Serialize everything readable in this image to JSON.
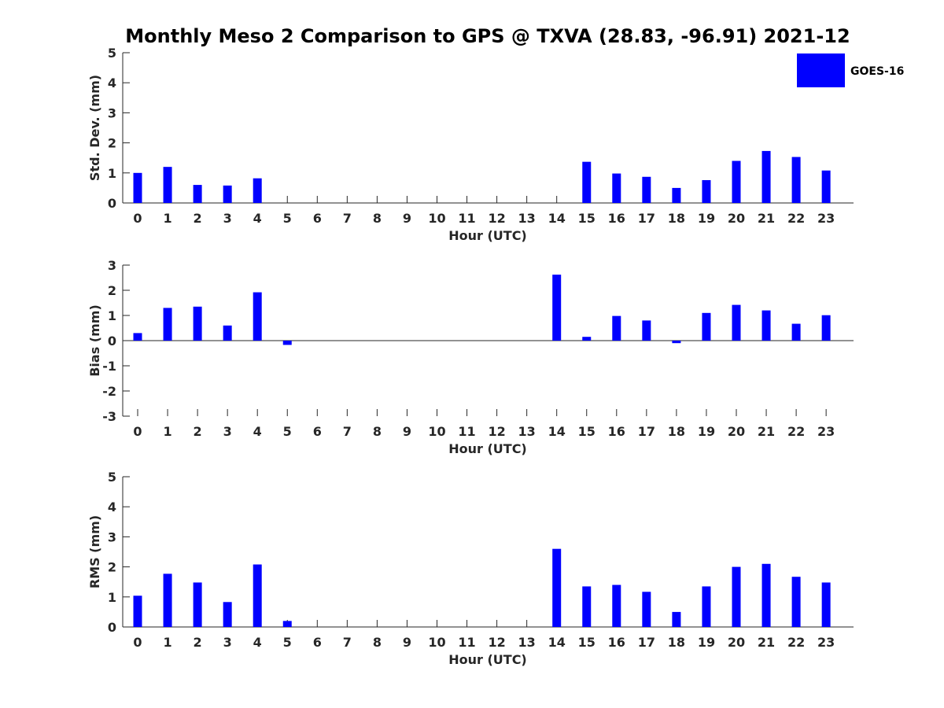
{
  "title": "Monthly Meso 2 Comparison to GPS @ TXVA (28.83, -96.91) 2021-12",
  "legend": {
    "label": "GOES-16",
    "color": "#0000ff",
    "placement": "top-right"
  },
  "chart_data": [
    {
      "type": "bar",
      "xlabel": "Hour (UTC)",
      "ylabel": "Std. Dev. (mm)",
      "ylim": [
        0,
        5
      ],
      "yticks": [
        "0",
        "1",
        "2",
        "3",
        "4",
        "5"
      ],
      "categories": [
        "0",
        "1",
        "2",
        "3",
        "4",
        "5",
        "6",
        "7",
        "8",
        "9",
        "10",
        "11",
        "12",
        "13",
        "14",
        "15",
        "16",
        "17",
        "18",
        "19",
        "20",
        "21",
        "22",
        "23"
      ],
      "series": [
        {
          "name": "GOES-16",
          "values": [
            1.0,
            1.2,
            0.6,
            0.58,
            0.82,
            0,
            0,
            0,
            0,
            0,
            0,
            0,
            0,
            0,
            0,
            1.37,
            0.98,
            0.87,
            0.5,
            0.76,
            1.4,
            1.73,
            1.53,
            1.08
          ]
        }
      ]
    },
    {
      "type": "bar",
      "xlabel": "Hour (UTC)",
      "ylabel": "Bias (mm)",
      "ylim": [
        -3,
        3
      ],
      "yticks": [
        "-3",
        "-2",
        "-1",
        "0",
        "1",
        "2",
        "3"
      ],
      "categories": [
        "0",
        "1",
        "2",
        "3",
        "4",
        "5",
        "6",
        "7",
        "8",
        "9",
        "10",
        "11",
        "12",
        "13",
        "14",
        "15",
        "16",
        "17",
        "18",
        "19",
        "20",
        "21",
        "22",
        "23"
      ],
      "series": [
        {
          "name": "GOES-16",
          "values": [
            0.3,
            1.3,
            1.35,
            0.6,
            1.92,
            -0.17,
            0,
            0,
            0,
            0,
            0,
            0,
            0,
            0,
            2.62,
            0.15,
            0.98,
            0.8,
            -0.1,
            1.1,
            1.42,
            1.2,
            0.67,
            1.01
          ]
        }
      ]
    },
    {
      "type": "bar",
      "xlabel": "Hour (UTC)",
      "ylabel": "RMS (mm)",
      "ylim": [
        0,
        5
      ],
      "yticks": [
        "0",
        "1",
        "2",
        "3",
        "4",
        "5"
      ],
      "categories": [
        "0",
        "1",
        "2",
        "3",
        "4",
        "5",
        "6",
        "7",
        "8",
        "9",
        "10",
        "11",
        "12",
        "13",
        "14",
        "15",
        "16",
        "17",
        "18",
        "19",
        "20",
        "21",
        "22",
        "23"
      ],
      "series": [
        {
          "name": "GOES-16",
          "values": [
            1.04,
            1.77,
            1.48,
            0.83,
            2.08,
            0.2,
            0,
            0,
            0,
            0,
            0,
            0,
            0,
            0,
            2.6,
            1.35,
            1.4,
            1.17,
            0.5,
            1.35,
            2.0,
            2.1,
            1.67,
            1.48
          ]
        }
      ]
    }
  ]
}
